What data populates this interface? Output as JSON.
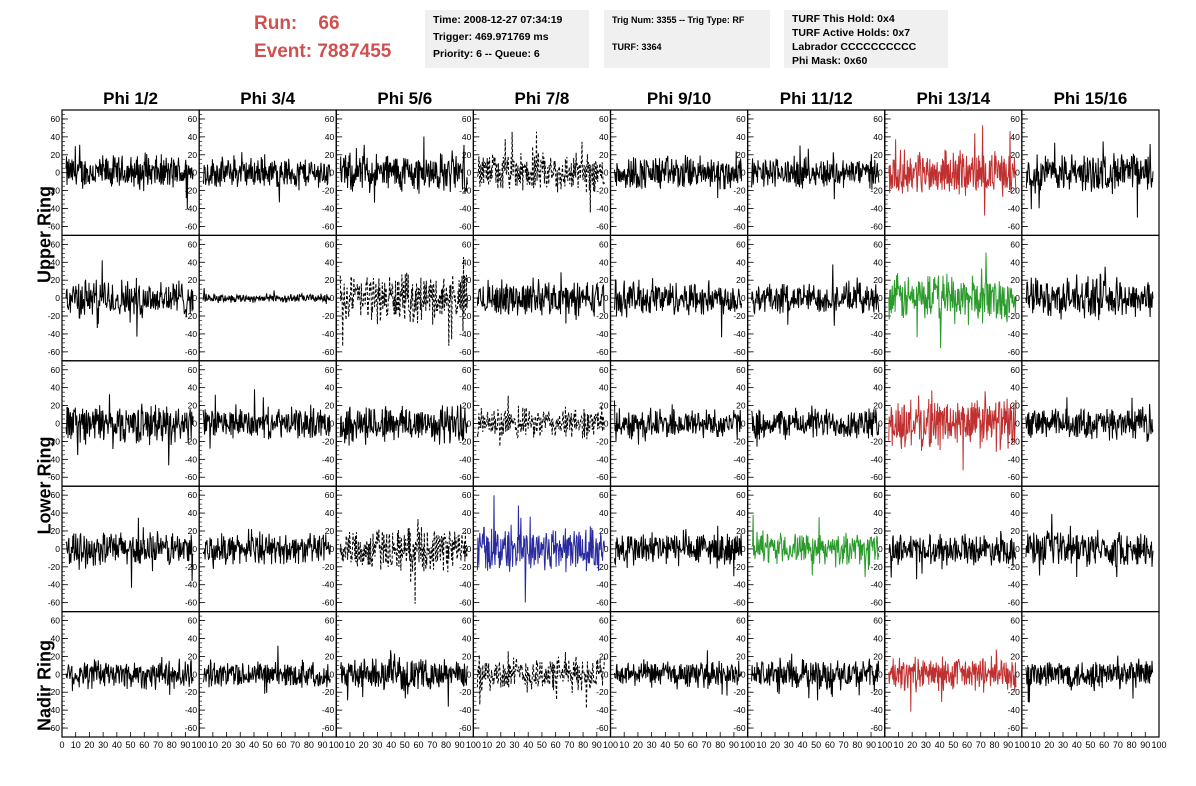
{
  "header": {
    "run_label": "Run:",
    "run_value": "66",
    "event_label": "Event:",
    "event_value": "7887455",
    "info_box_1": [
      "Time: 2008-12-27 07:34:19",
      "Trigger: 469.971769 ms",
      "Priority: 6 -- Queue: 6"
    ],
    "info_box_2": [
      "Trig Num: 3355 -- Trig Type: RF",
      "TURF: 3364"
    ],
    "info_box_3": [
      "TURF This Hold: 0x4",
      "TURF Active Holds: 0x7",
      "Labrador CCCCCCCCCC",
      "Phi Mask: 0x60"
    ]
  },
  "chart_data": {
    "type": "line",
    "columns": [
      "Phi 1/2",
      "Phi 3/4",
      "Phi 5/6",
      "Phi 7/8",
      "Phi 9/10",
      "Phi 11/12",
      "Phi 13/14",
      "Phi 15/16"
    ],
    "rows": [
      "Upper Ring",
      "Upper Ring",
      "Lower Ring",
      "Lower Ring",
      "Nadir Ring"
    ],
    "row_labels": [
      "Upper Ring",
      "Lower Ring",
      "Nadir Ring"
    ],
    "ylim": [
      -70,
      70
    ],
    "yticks": [
      -60,
      -40,
      -20,
      0,
      20,
      40,
      60
    ],
    "xlim": [
      0,
      100
    ],
    "xtick_labels": [
      "0",
      "10",
      "20",
      "30",
      "40",
      "50",
      "60",
      "70",
      "80",
      "90",
      "100"
    ],
    "colors": {
      "normal": "#000000",
      "red": "#c03030",
      "green": "#2a9a2a",
      "blue": "#2a2aa0"
    },
    "panels": [
      [
        {
          "style": "normal",
          "amp": 16
        },
        {
          "style": "normal",
          "amp": 14
        },
        {
          "style": "normal",
          "amp": 18
        },
        {
          "style": "dashed",
          "amp": 18
        },
        {
          "style": "normal",
          "amp": 16
        },
        {
          "style": "normal",
          "amp": 14
        },
        {
          "style": "red",
          "amp": 20
        },
        {
          "style": "normal",
          "amp": 18
        }
      ],
      [
        {
          "style": "normal",
          "amp": 18
        },
        {
          "style": "flat",
          "amp": 4
        },
        {
          "style": "dashed",
          "amp": 22
        },
        {
          "style": "normal",
          "amp": 16
        },
        {
          "style": "normal",
          "amp": 16
        },
        {
          "style": "normal",
          "amp": 14
        },
        {
          "style": "green",
          "amp": 22
        },
        {
          "style": "normal",
          "amp": 18
        }
      ],
      [
        {
          "style": "normal",
          "amp": 18
        },
        {
          "style": "normal",
          "amp": 14
        },
        {
          "style": "normal",
          "amp": 18
        },
        {
          "style": "dashed",
          "amp": 14
        },
        {
          "style": "normal",
          "amp": 14
        },
        {
          "style": "normal",
          "amp": 14
        },
        {
          "style": "red",
          "amp": 24
        },
        {
          "style": "normal",
          "amp": 14
        }
      ],
      [
        {
          "style": "normal",
          "amp": 16
        },
        {
          "style": "normal",
          "amp": 14
        },
        {
          "style": "dashed",
          "amp": 20
        },
        {
          "style": "blue",
          "amp": 22
        },
        {
          "style": "normal",
          "amp": 16
        },
        {
          "style": "green",
          "amp": 14
        },
        {
          "style": "normal",
          "amp": 14
        },
        {
          "style": "normal",
          "amp": 16
        }
      ],
      [
        {
          "style": "normal",
          "amp": 14
        },
        {
          "style": "normal",
          "amp": 12
        },
        {
          "style": "normal",
          "amp": 14
        },
        {
          "style": "dashed",
          "amp": 16
        },
        {
          "style": "normal",
          "amp": 12
        },
        {
          "style": "normal",
          "amp": 14
        },
        {
          "style": "red",
          "amp": 16
        },
        {
          "style": "normal",
          "amp": 14
        }
      ]
    ]
  }
}
